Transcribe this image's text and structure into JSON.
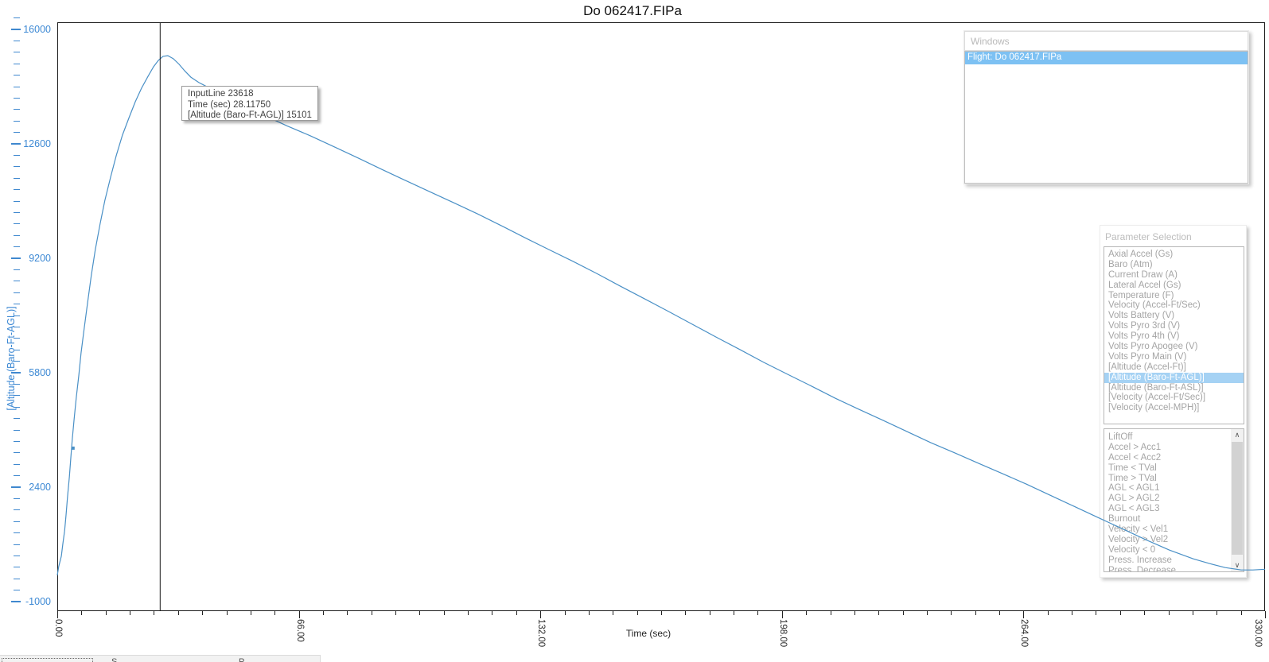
{
  "app": {
    "title": "Do 062417.FIPa"
  },
  "plot": {
    "x_axis": {
      "title": "Time (sec)",
      "tick_labels": [
        "0.00",
        "66.00",
        "132.00",
        "198.00",
        "264.00",
        "330.00"
      ],
      "tick_values": [
        0,
        66,
        132,
        198,
        264,
        330
      ]
    },
    "y_axis": {
      "title": "[Altitude (Baro-Ft-AGL)]",
      "tick_labels": [
        "16000",
        "12600",
        "9200",
        "5800",
        "2400",
        "-1000"
      ],
      "tick_values": [
        16000,
        12600,
        9200,
        5800,
        2400,
        -1000
      ]
    },
    "colors": {
      "series": "#4a90c6",
      "axis_blue": "#3d89d4",
      "cursor": "#1a1a1a"
    }
  },
  "tooltip": {
    "lines": [
      "InputLine 23618",
      "Time (sec) 28.11750",
      "[Altitude (Baro-Ft-AGL)] 15101"
    ]
  },
  "windows_panel": {
    "title": "Windows",
    "items": [
      {
        "label": "Flight: Do 062417.FIPa",
        "selected": true
      }
    ]
  },
  "parameter_panel": {
    "title": "Parameter Selection",
    "parameters": [
      "Axial Accel (Gs)",
      "Baro (Atm)",
      "Current Draw (A)",
      "Lateral Accel (Gs)",
      "Temperature (F)",
      "Velocity (Accel-Ft/Sec)",
      "Volts Battery (V)",
      "Volts Pyro 3rd (V)",
      "Volts Pyro 4th (V)",
      "Volts Pyro Apogee (V)",
      "Volts Pyro Main (V)",
      "[Altitude (Accel-Ft)]",
      "[Altitude (Baro-Ft-AGL)]",
      "[Altitude (Baro-Ft-ASL)]",
      "[Velocity (Accel-Ft/Sec)]",
      "[Velocity (Accel-MPH)]"
    ],
    "selected_parameter": "[Altitude (Baro-Ft-AGL)]",
    "events": [
      "LiftOff",
      "Accel > Acc1",
      "Accel < Acc2",
      "Time < TVal",
      "Time > TVal",
      "AGL < AGL1",
      "AGL > AGL2",
      "AGL < AGL3",
      "Burnout",
      "Velocity < Vel1",
      "Velocity > Vel2",
      "Velocity < 0",
      "Press. Increase",
      "Press. Decrease"
    ]
  },
  "bottom_bar": {
    "fragments": [
      "S",
      "P"
    ]
  },
  "chart_data": {
    "type": "line",
    "title": "Do 062417.FIPa",
    "xlabel": "Time (sec)",
    "ylabel": "[Altitude (Baro-Ft-AGL)]",
    "xlim": [
      0,
      330
    ],
    "ylim_labeled": [
      -1000,
      16000
    ],
    "grid": false,
    "cursor": {
      "time": 28.1175,
      "altitude": 15101,
      "input_line": 23618
    },
    "marker_point": {
      "time": 4.3,
      "altitude": 3560
    },
    "series": [
      {
        "name": "[Altitude (Baro-Ft-AGL)]",
        "points": [
          [
            0.0,
            -220
          ],
          [
            0.4,
            40
          ],
          [
            1.1,
            350
          ],
          [
            1.5,
            700
          ],
          [
            2.0,
            1100
          ],
          [
            2.4,
            1570
          ],
          [
            2.8,
            2120
          ],
          [
            3.3,
            2710
          ],
          [
            3.7,
            3270
          ],
          [
            4.1,
            3840
          ],
          [
            4.6,
            4430
          ],
          [
            5.2,
            5070
          ],
          [
            5.9,
            5730
          ],
          [
            6.5,
            6390
          ],
          [
            7.4,
            7150
          ],
          [
            8.3,
            7900
          ],
          [
            9.3,
            8700
          ],
          [
            10.4,
            9460
          ],
          [
            11.7,
            10220
          ],
          [
            13.0,
            10920
          ],
          [
            14.6,
            11630
          ],
          [
            16.1,
            12250
          ],
          [
            17.8,
            12860
          ],
          [
            19.6,
            13380
          ],
          [
            21.3,
            13850
          ],
          [
            23.0,
            14250
          ],
          [
            24.8,
            14610
          ],
          [
            26.3,
            14890
          ],
          [
            27.6,
            15080
          ],
          [
            28.9,
            15200
          ],
          [
            30.2,
            15220
          ],
          [
            31.7,
            15130
          ],
          [
            33.3,
            14960
          ],
          [
            34.8,
            14770
          ],
          [
            36.5,
            14580
          ],
          [
            38.7,
            14420
          ],
          [
            43.0,
            14180
          ],
          [
            49.6,
            13800
          ],
          [
            56.1,
            13470
          ],
          [
            62.6,
            13140
          ],
          [
            69.1,
            12840
          ],
          [
            75.7,
            12510
          ],
          [
            82.2,
            12180
          ],
          [
            88.7,
            11840
          ],
          [
            95.2,
            11510
          ],
          [
            101.7,
            11180
          ],
          [
            108.3,
            10850
          ],
          [
            114.8,
            10520
          ],
          [
            121.3,
            10170
          ],
          [
            127.8,
            9810
          ],
          [
            134.3,
            9460
          ],
          [
            140.9,
            9110
          ],
          [
            147.4,
            8750
          ],
          [
            153.9,
            8370
          ],
          [
            160.4,
            8000
          ],
          [
            167.0,
            7620
          ],
          [
            173.5,
            7240
          ],
          [
            180.0,
            6860
          ],
          [
            186.5,
            6490
          ],
          [
            193.0,
            6110
          ],
          [
            199.6,
            5750
          ],
          [
            206.1,
            5400
          ],
          [
            212.6,
            5040
          ],
          [
            219.1,
            4710
          ],
          [
            225.7,
            4380
          ],
          [
            232.2,
            4050
          ],
          [
            238.7,
            3720
          ],
          [
            245.2,
            3420
          ],
          [
            251.7,
            3110
          ],
          [
            258.3,
            2800
          ],
          [
            264.8,
            2490
          ],
          [
            271.3,
            2160
          ],
          [
            277.8,
            1830
          ],
          [
            284.3,
            1500
          ],
          [
            290.9,
            1170
          ],
          [
            297.4,
            840
          ],
          [
            303.9,
            530
          ],
          [
            310.4,
            270
          ],
          [
            314.8,
            130
          ],
          [
            319.1,
            10
          ],
          [
            323.5,
            -60
          ],
          [
            326.7,
            -60
          ],
          [
            330.0,
            -40
          ]
        ]
      }
    ]
  }
}
